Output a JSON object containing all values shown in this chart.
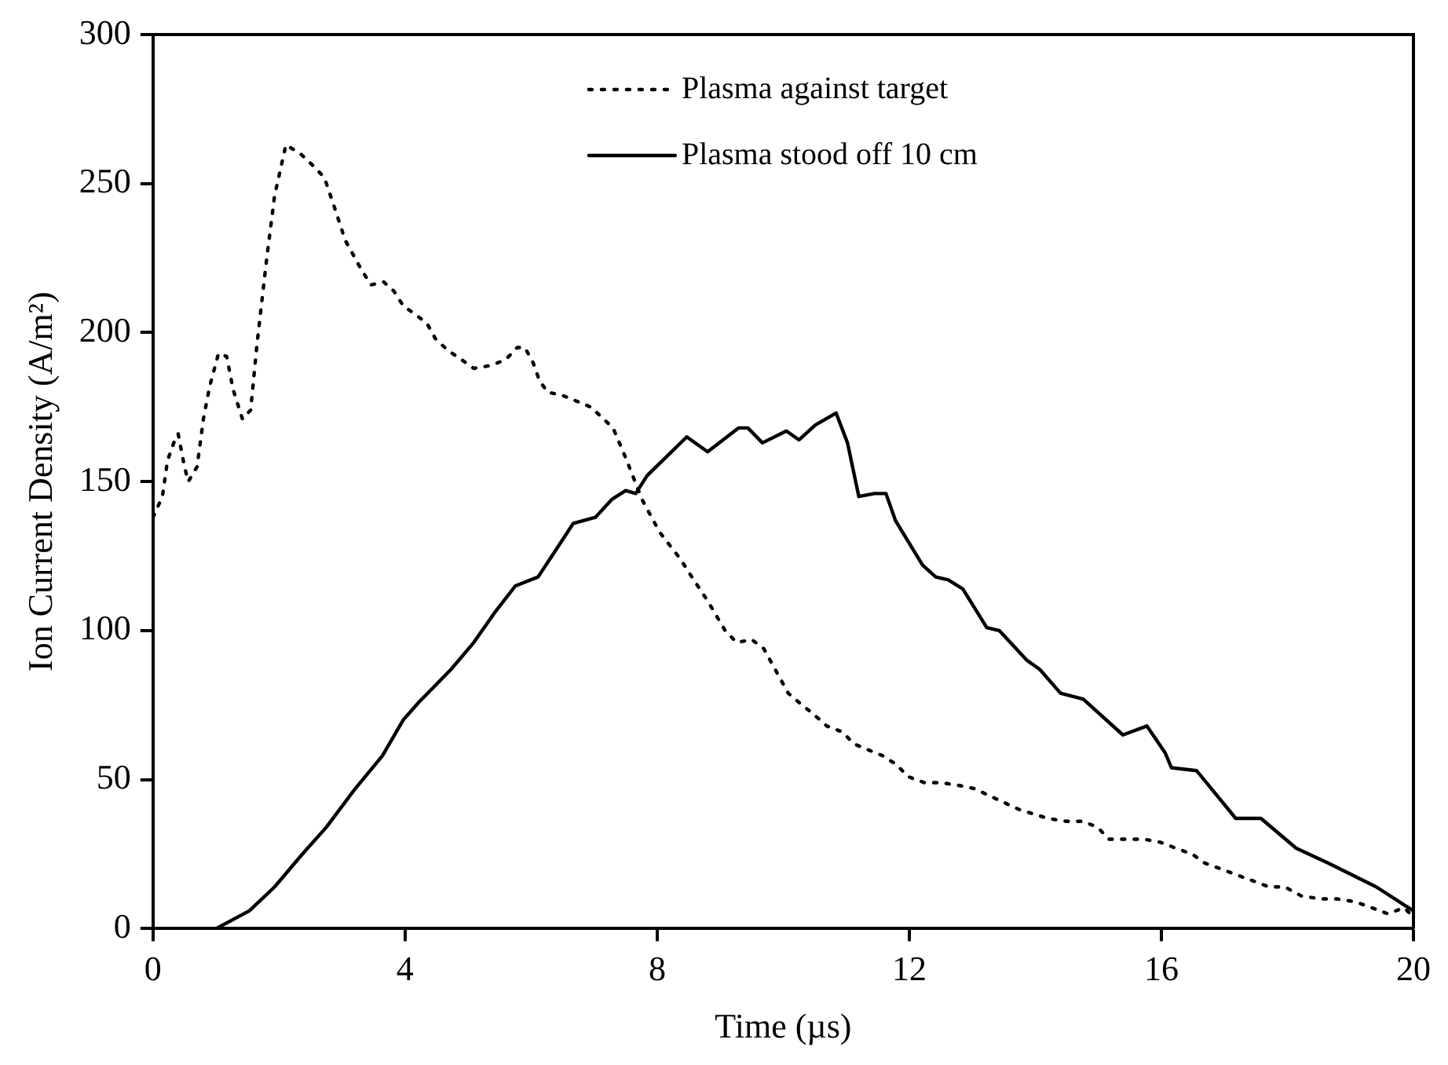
{
  "chart_data": {
    "type": "line",
    "xlabel": "Time (µs)",
    "ylabel": "Ion Current Density (A/m²)",
    "xlim": [
      0,
      20
    ],
    "ylim": [
      0,
      300
    ],
    "xticks": [
      0,
      4,
      8,
      12,
      16,
      20
    ],
    "yticks": [
      0,
      50,
      100,
      150,
      200,
      250,
      300
    ],
    "grid": false,
    "legend": "top",
    "marker": "none",
    "series": [
      {
        "name": "Plasma against target",
        "color": "#000000",
        "line_style": "dotted",
        "x": [
          0,
          0.15,
          0.23,
          0.33,
          0.4,
          0.5,
          0.56,
          0.7,
          0.8,
          0.9,
          1.04,
          1.17,
          1.27,
          1.42,
          1.55,
          1.65,
          1.8,
          1.93,
          2.11,
          2.34,
          2.54,
          2.72,
          2.88,
          3.05,
          3.31,
          3.46,
          3.66,
          3.82,
          3.97,
          4.17,
          4.35,
          4.48,
          4.68,
          4.89,
          5.09,
          5.37,
          5.6,
          5.78,
          5.9,
          6.03,
          6.13,
          6.26,
          6.49,
          6.72,
          6.95,
          7.3,
          7.5,
          7.76,
          8.04,
          8.37,
          8.52,
          8.8,
          9.08,
          9.26,
          9.5,
          9.69,
          9.82,
          9.95,
          10.08,
          10.3,
          10.48,
          10.69,
          10.94,
          11.12,
          11.35,
          11.58,
          11.8,
          11.98,
          12.24,
          12.5,
          12.8,
          13.03,
          13.74,
          14.2,
          14.5,
          14.76,
          14.99,
          15.17,
          15.47,
          15.73,
          15.98,
          16.23,
          16.49,
          16.69,
          16.95,
          17.2,
          17.46,
          17.71,
          17.96,
          18.22,
          18.52,
          18.78,
          19.08,
          19.34,
          19.59,
          19.85,
          20
        ],
        "values": [
          138,
          145,
          157,
          163,
          166,
          155,
          150,
          155,
          171,
          182,
          193,
          192,
          181,
          171,
          174,
          196,
          224,
          246,
          263,
          260,
          256,
          252,
          242,
          231,
          221,
          216,
          217,
          214,
          209,
          206,
          203,
          198,
          194,
          191,
          188,
          189,
          191,
          195,
          195,
          190,
          184,
          180,
          179,
          177,
          175,
          168,
          158,
          144,
          133,
          124,
          119,
          110,
          100,
          96,
          97,
          94,
          89,
          84,
          79,
          75,
          72,
          68,
          66,
          62,
          60,
          58,
          55,
          51,
          49,
          49,
          48,
          47,
          40,
          37,
          36,
          36,
          34,
          30,
          30,
          30,
          29,
          27,
          25,
          22,
          20,
          18,
          16,
          14,
          14,
          11,
          10,
          10,
          9,
          7,
          5,
          7,
          4
        ]
      },
      {
        "name": "Plasma stood off 10 cm",
        "color": "#000000",
        "line_style": "solid",
        "x": [
          0,
          1.0,
          1.53,
          1.93,
          2.37,
          2.75,
          3.21,
          3.64,
          3.97,
          4.22,
          4.73,
          5.09,
          5.42,
          5.75,
          6.11,
          6.36,
          6.67,
          7.02,
          7.28,
          7.5,
          7.66,
          7.84,
          8.47,
          8.8,
          9.29,
          9.44,
          9.67,
          10.05,
          10.25,
          10.51,
          10.84,
          11.02,
          11.2,
          11.45,
          11.63,
          11.78,
          12.21,
          12.42,
          12.62,
          12.85,
          13.23,
          13.43,
          13.87,
          14.07,
          14.4,
          14.76,
          15.39,
          15.77,
          16.06,
          16.16,
          16.56,
          17.18,
          17.58,
          18.14,
          18.65,
          19.41,
          19.85,
          20
        ],
        "values": [
          0,
          0,
          6,
          14,
          25,
          34,
          47,
          58,
          70,
          76,
          87,
          96,
          106,
          115,
          118,
          126,
          136,
          138,
          144,
          147,
          146,
          152,
          165,
          160,
          168,
          168,
          163,
          167,
          164,
          169,
          173,
          163,
          145,
          146,
          146,
          137,
          122,
          118,
          117,
          114,
          101,
          100,
          90,
          87,
          79,
          77,
          65,
          68,
          59,
          54,
          53,
          37,
          37,
          27,
          22,
          14,
          8,
          6
        ]
      }
    ]
  }
}
